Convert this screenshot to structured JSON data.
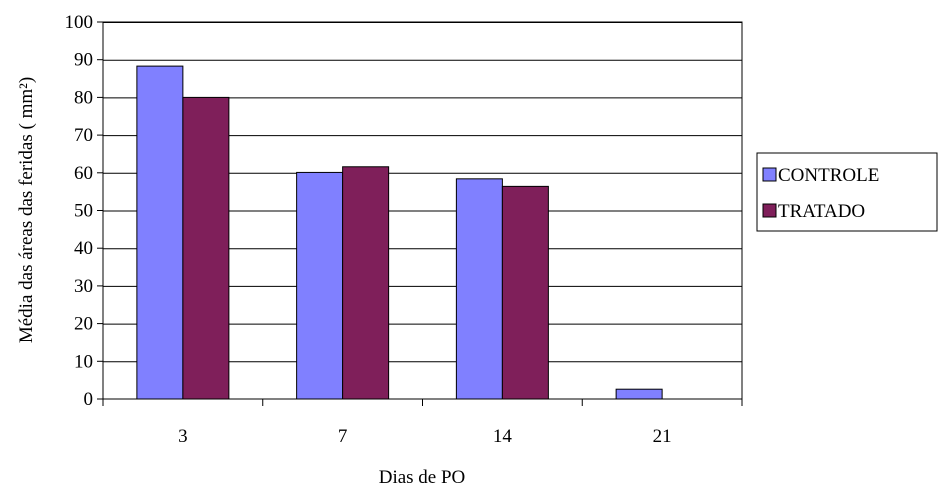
{
  "chart_data": {
    "type": "bar",
    "title": "",
    "xlabel": "Dias de PO",
    "ylabel": "Média das áreas das feridas ( mm²)",
    "categories": [
      "3",
      "7",
      "14",
      "21"
    ],
    "series": [
      {
        "name": "CONTROLE",
        "color": "#8080ff",
        "values": [
          88.3,
          60.1,
          58.4,
          2.6
        ]
      },
      {
        "name": "TRATADO",
        "color": "#7f1f5a",
        "values": [
          80.0,
          61.6,
          56.4,
          0
        ]
      }
    ],
    "ylim": [
      0,
      100
    ],
    "yticks": [
      0,
      10,
      20,
      30,
      40,
      50,
      60,
      70,
      80,
      90,
      100
    ],
    "grid": true,
    "legend": "right"
  }
}
